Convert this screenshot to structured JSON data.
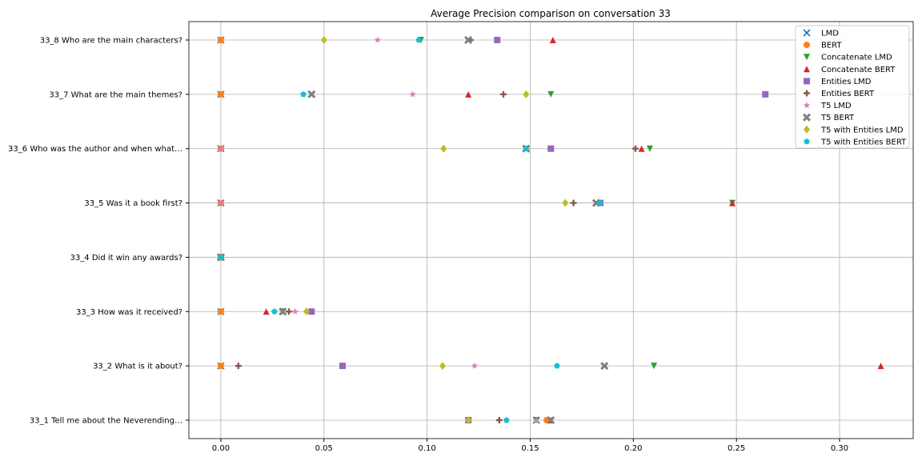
{
  "chart_data": {
    "type": "scatter",
    "title": "Average Precision comparison on conversation 33",
    "xlabel": "",
    "ylabel": "",
    "xlim": [
      -0.0155,
      0.3357
    ],
    "x_ticks": [
      "0.00",
      "0.05",
      "0.10",
      "0.15",
      "0.20",
      "0.25",
      "0.30"
    ],
    "grid": true,
    "legend_position": "top-right",
    "categories": [
      "33_1 Tell me about the Neverending…",
      "33_2 What is it about?",
      "33_3 How was it received?",
      "33_4 Did it win any awards?",
      "33_5 Was it a book first?",
      "33_6 Who was the author and when what…",
      "33_7 What are the main themes?",
      "33_8 Who are the main characters?"
    ],
    "series": [
      {
        "name": "LMD",
        "marker": "x",
        "color": "#1f77b4",
        "values": [
          0.153,
          0,
          0,
          0,
          0,
          0,
          0,
          0
        ]
      },
      {
        "name": "BERT",
        "marker": "circle",
        "color": "#ff7f0e",
        "values": [
          0.158,
          0,
          0,
          0,
          0,
          0,
          0,
          0
        ]
      },
      {
        "name": "Concatenate LMD",
        "marker": "triangle-down",
        "color": "#2ca02c",
        "values": [
          0.153,
          0.21,
          0.03,
          0,
          0.248,
          0.208,
          0.16,
          0.097
        ]
      },
      {
        "name": "Concatenate BERT",
        "marker": "triangle-up",
        "color": "#d62728",
        "values": [
          0.16,
          0.32,
          0.022,
          0,
          0.248,
          0.204,
          0.12,
          0.161
        ]
      },
      {
        "name": "Entities LMD",
        "marker": "square",
        "color": "#9467bd",
        "values": [
          0.12,
          0.059,
          0.044,
          0,
          0.184,
          0.16,
          0.264,
          0.134
        ]
      },
      {
        "name": "Entities BERT",
        "marker": "plus",
        "color": "#8c564b",
        "values": [
          0.135,
          0.0085,
          0.033,
          0,
          0.171,
          0.201,
          0.137,
          0.121
        ]
      },
      {
        "name": "T5 LMD",
        "marker": "star",
        "color": "#e377c2",
        "values": [
          0.153,
          0.123,
          0.036,
          0,
          0,
          0,
          0.093,
          0.076
        ]
      },
      {
        "name": "T5 BERT",
        "marker": "X",
        "color": "#7f7f7f",
        "values": [
          0.16,
          0.186,
          0.03,
          0,
          0.182,
          0.148,
          0.044,
          0.12
        ]
      },
      {
        "name": "T5 with Entities LMD",
        "marker": "diamond",
        "color": "#bcbd22",
        "values": [
          0.12,
          0.1075,
          0.0415,
          0,
          0.167,
          0.108,
          0.148,
          0.05
        ]
      },
      {
        "name": "T5 with Entities BERT",
        "marker": "pentagon",
        "color": "#17becf",
        "values": [
          0.1385,
          0.163,
          0.026,
          0,
          0.184,
          0.148,
          0.04,
          0.096
        ]
      }
    ]
  }
}
